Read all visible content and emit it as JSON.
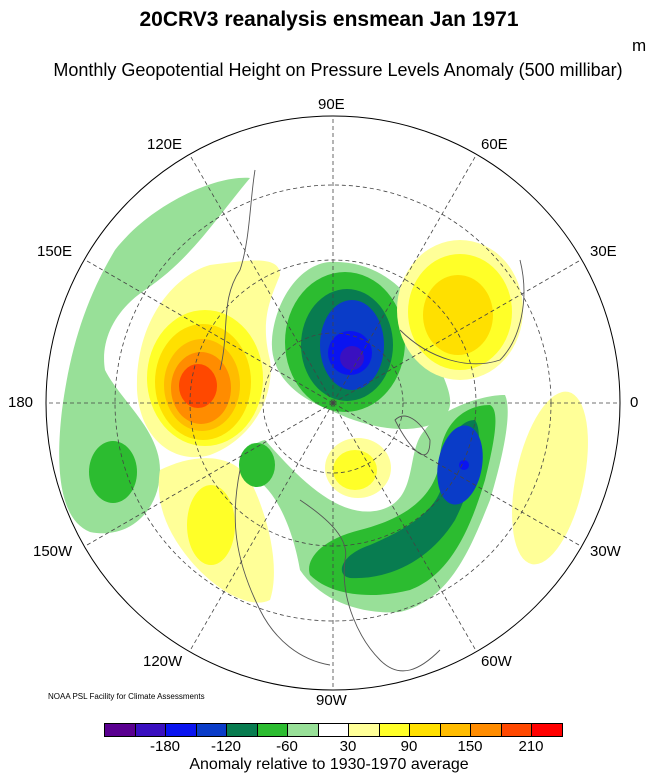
{
  "title": "20CRV3 reanalysis ensmean Jan 1971",
  "subtitle": "Monthly Geopotential Height on Pressure Levels Anomaly (500 millibar)",
  "units": "m",
  "credit": "NOAA PSL Facility for Climate Assessments",
  "longitude_labels": {
    "lon_90E": "90E",
    "lon_60E": "60E",
    "lon_30E": "30E",
    "lon_0": "0",
    "lon_30W": "30W",
    "lon_60W": "60W",
    "lon_90W": "90W",
    "lon_120W": "120W",
    "lon_150W": "150W",
    "lon_180": "180",
    "lon_150E": "150E",
    "lon_120E": "120E"
  },
  "colorbar": {
    "colors": [
      "#5a0090",
      "#3a10c0",
      "#0a14f0",
      "#0a3cc8",
      "#087c50",
      "#2cbc30",
      "#98e098",
      "#ffffff",
      "#ffff98",
      "#ffff28",
      "#ffe000",
      "#ffbc00",
      "#ff8c00",
      "#ff4800",
      "#ff0000"
    ],
    "tick_labels": [
      "-180",
      "-120",
      "-60",
      "30",
      "90",
      "150",
      "210"
    ],
    "label": "Anomaly relative to 1930-1970 average"
  }
}
